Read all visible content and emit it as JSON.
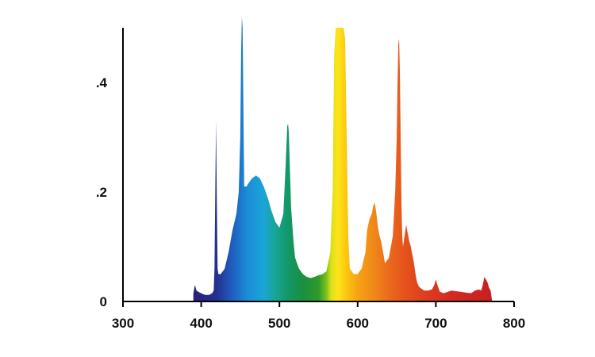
{
  "chart_data": {
    "type": "area",
    "title": "",
    "xlabel": "",
    "ylabel": "",
    "xlim": [
      300,
      800
    ],
    "ylim": [
      0,
      0.5
    ],
    "grid": false,
    "legend": "none",
    "x_ticks": [
      300,
      400,
      500,
      600,
      700,
      800
    ],
    "x_tick_labels": [
      "300",
      "400",
      "500",
      "600",
      "700",
      "800"
    ],
    "y_ticks": [
      0,
      0.2,
      0.4
    ],
    "y_tick_labels": [
      "0",
      ".2",
      ".4"
    ],
    "fill": "visible-spectrum gradient colored by wavelength",
    "series": [
      {
        "x": [
          390,
          392,
          394,
          396,
          400,
          405,
          410,
          414,
          416,
          417,
          418,
          419,
          420,
          421,
          422,
          425,
          430,
          435,
          440,
          445,
          448,
          450,
          451,
          452,
          453,
          454,
          455,
          456,
          458,
          460,
          465,
          470,
          475,
          480,
          485,
          490,
          495,
          500,
          505,
          508,
          510,
          511,
          512,
          513,
          515,
          518,
          520,
          525,
          530,
          535,
          540,
          545,
          550,
          555,
          560,
          565,
          568,
          570,
          572,
          574,
          575,
          576,
          578,
          580,
          582,
          584,
          586,
          588,
          590,
          595,
          600,
          605,
          610,
          612,
          615,
          618,
          620,
          622,
          624,
          626,
          628,
          630,
          635,
          640,
          645,
          648,
          650,
          651,
          652,
          653,
          654,
          655,
          656,
          657,
          658,
          660,
          662,
          664,
          666,
          668,
          670,
          672,
          674,
          676,
          678,
          680,
          685,
          690,
          695,
          698,
          700,
          702,
          705,
          710,
          720,
          730,
          740,
          745,
          750,
          755,
          758,
          760,
          762,
          764,
          766,
          768,
          770,
          772
        ],
        "y": [
          0.015,
          0.03,
          0.02,
          0.018,
          0.015,
          0.012,
          0.012,
          0.015,
          0.02,
          0.06,
          0.2,
          0.33,
          0.18,
          0.06,
          0.05,
          0.05,
          0.06,
          0.09,
          0.13,
          0.16,
          0.2,
          0.3,
          0.45,
          0.52,
          0.5,
          0.35,
          0.21,
          0.21,
          0.21,
          0.215,
          0.225,
          0.23,
          0.225,
          0.21,
          0.19,
          0.165,
          0.145,
          0.135,
          0.16,
          0.25,
          0.32,
          0.325,
          0.31,
          0.26,
          0.17,
          0.11,
          0.08,
          0.06,
          0.05,
          0.045,
          0.043,
          0.045,
          0.048,
          0.05,
          0.055,
          0.09,
          0.2,
          0.45,
          0.5,
          0.5,
          0.5,
          0.5,
          0.5,
          0.5,
          0.5,
          0.48,
          0.3,
          0.12,
          0.06,
          0.05,
          0.05,
          0.06,
          0.09,
          0.13,
          0.15,
          0.16,
          0.175,
          0.18,
          0.16,
          0.135,
          0.12,
          0.11,
          0.07,
          0.08,
          0.12,
          0.2,
          0.3,
          0.4,
          0.47,
          0.48,
          0.42,
          0.3,
          0.18,
          0.12,
          0.1,
          0.12,
          0.14,
          0.125,
          0.11,
          0.1,
          0.085,
          0.07,
          0.05,
          0.035,
          0.028,
          0.025,
          0.02,
          0.02,
          0.022,
          0.03,
          0.04,
          0.03,
          0.018,
          0.015,
          0.02,
          0.018,
          0.016,
          0.015,
          0.02,
          0.022,
          0.02,
          0.03,
          0.045,
          0.04,
          0.035,
          0.025,
          0.02,
          0.0
        ]
      }
    ]
  }
}
